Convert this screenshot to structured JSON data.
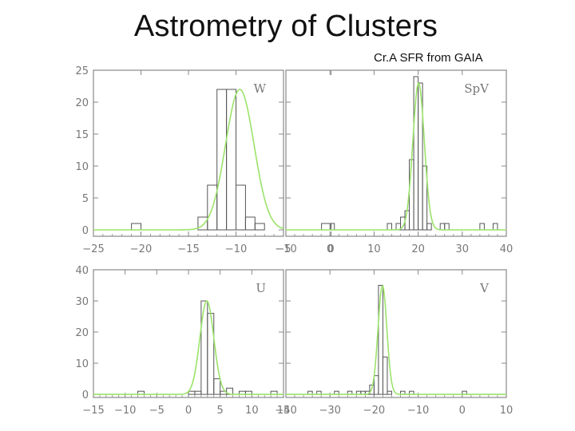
{
  "slide": {
    "title": "Astrometry of Clusters",
    "subtitle": "Cr.A SFR from GAIA"
  },
  "colors": {
    "histogram": "#555555",
    "fit": "#9be36a",
    "axis": "#888888"
  },
  "chart_data": [
    {
      "type": "bar",
      "panel_label": "W",
      "xlim": [
        -25,
        -5
      ],
      "ylim": [
        -1,
        25
      ],
      "xticks": [
        -25,
        -20,
        -15,
        -10,
        -5,
        0
      ],
      "xtick_labels": [
        "−25",
        "−20",
        "−15",
        "−10",
        "−5",
        "0"
      ],
      "yticks": [
        0,
        5,
        10,
        15,
        20,
        25
      ],
      "bin_edges": [
        -21,
        -20,
        -19,
        -18,
        -17,
        -16,
        -15,
        -14,
        -13,
        -12,
        -11,
        -10,
        -9,
        -8,
        -7,
        -6,
        -5,
        -4,
        -3,
        -2,
        -1,
        0,
        1,
        2
      ],
      "counts": [
        1,
        0,
        0,
        0,
        0,
        0,
        0,
        2,
        7,
        22,
        22,
        7,
        2,
        1,
        0,
        0,
        0,
        0,
        0,
        0,
        1,
        0,
        0
      ],
      "fit": {
        "mu": -9.6,
        "sigma": 1.5,
        "amp": 22
      }
    },
    {
      "type": "bar",
      "panel_label": "SpV",
      "xlim": [
        -10,
        40
      ],
      "ylim": [
        -1,
        25
      ],
      "xticks": [
        -10,
        0,
        10,
        20,
        30,
        40
      ],
      "xtick_labels": [
        "−10",
        "0",
        "10",
        "20",
        "30",
        "40"
      ],
      "yticks": [
        0,
        5,
        10,
        15,
        20,
        25
      ],
      "bin_edges": [
        0,
        1,
        2,
        3,
        4,
        5,
        6,
        7,
        8,
        9,
        10,
        11,
        12,
        13,
        14,
        15,
        16,
        17,
        18,
        19,
        20,
        21,
        22,
        23,
        24,
        25,
        26,
        27,
        28,
        29,
        30,
        31,
        32,
        33,
        34,
        35,
        36,
        37,
        38
      ],
      "counts": [
        1,
        0,
        0,
        0,
        0,
        0,
        0,
        0,
        0,
        0,
        0,
        0,
        0,
        1,
        0,
        1,
        2,
        3,
        11,
        24,
        23,
        10,
        1,
        0,
        0,
        1,
        1,
        0,
        0,
        0,
        0,
        0,
        0,
        0,
        1,
        0,
        0,
        1
      ],
      "fit": {
        "mu": 20.1,
        "sigma": 1.3,
        "amp": 23
      }
    },
    {
      "type": "bar",
      "panel_label": "U",
      "xlim": [
        -15,
        15
      ],
      "ylim": [
        -1,
        40
      ],
      "xticks": [
        -15,
        -10,
        -5,
        0,
        5,
        10,
        15
      ],
      "xtick_labels": [
        "−15",
        "−10",
        "−5",
        "0",
        "5",
        "10",
        "15"
      ],
      "yticks": [
        0,
        10,
        20,
        30,
        40
      ],
      "bin_edges": [
        -8,
        -7,
        -6,
        -5,
        -4,
        -3,
        -2,
        -1,
        0,
        1,
        2,
        3,
        4,
        5,
        6,
        7,
        8,
        9,
        10,
        11,
        12,
        13,
        14,
        15
      ],
      "counts": [
        1,
        0,
        0,
        0,
        0,
        0,
        0,
        0,
        1,
        1,
        30,
        26,
        5,
        1,
        2,
        0,
        1,
        1,
        0,
        0,
        0,
        1,
        0
      ],
      "fit": {
        "mu": 2.9,
        "sigma": 1.1,
        "amp": 30
      }
    },
    {
      "type": "bar",
      "panel_label": "V",
      "xlim": [
        -40,
        10
      ],
      "ylim": [
        -1,
        40
      ],
      "xticks": [
        -40,
        -30,
        -20,
        -10,
        0,
        10
      ],
      "xtick_labels": [
        "−40",
        "−30",
        "−20",
        "−10",
        "0",
        "10"
      ],
      "yticks": [
        0,
        10,
        20,
        30,
        40
      ],
      "bin_edges": [
        -35,
        -34,
        -33,
        -32,
        -31,
        -30,
        -29,
        -28,
        -27,
        -26,
        -25,
        -24,
        -23,
        -22,
        -21,
        -20,
        -19,
        -18,
        -17,
        -16,
        -15,
        -14,
        -13,
        -12,
        -11,
        -10,
        -9,
        -8,
        -7,
        -6,
        -5,
        -4,
        -3,
        -2,
        -1,
        0,
        1
      ],
      "counts": [
        1,
        0,
        1,
        0,
        0,
        0,
        1,
        0,
        0,
        1,
        0,
        1,
        1,
        1,
        3,
        6,
        35,
        12,
        1,
        0,
        0,
        1,
        0,
        1,
        0,
        0,
        0,
        0,
        0,
        0,
        0,
        0,
        0,
        0,
        0,
        1
      ],
      "fit": {
        "mu": -18.1,
        "sigma": 1.0,
        "amp": 35
      }
    }
  ]
}
